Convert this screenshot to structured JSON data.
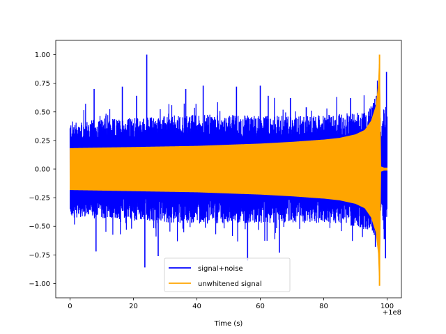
{
  "chart_data": {
    "type": "line",
    "title": "",
    "xlabel": "Time (s)",
    "ylabel": "",
    "x_offset_label": "+1e8",
    "xlim": [
      -4.5,
      104.5
    ],
    "ylim": [
      -1.125,
      1.125
    ],
    "x_ticks": [
      0,
      20,
      40,
      60,
      80,
      100
    ],
    "x_tick_labels": [
      "0",
      "20",
      "40",
      "60",
      "80",
      "100"
    ],
    "y_ticks": [
      1.0,
      0.75,
      0.5,
      0.25,
      0.0,
      -0.25,
      -0.5,
      -0.75,
      -1.0
    ],
    "y_tick_labels": [
      "1.00",
      "0.75",
      "0.50",
      "0.25",
      "0.00",
      "−0.25",
      "−0.50",
      "−0.75",
      "−1.00"
    ],
    "grid": false,
    "legend_position": "lower-center",
    "series": [
      {
        "name": "signal+noise",
        "color": "#0000ff",
        "x_range": [
          0,
          100
        ],
        "approx_envelope": {
          "x": [
            0,
            20,
            40,
            60,
            80,
            90,
            95,
            97.6,
            98,
            99,
            100
          ],
          "upper": [
            0.42,
            0.45,
            0.48,
            0.47,
            0.47,
            0.5,
            0.55,
            0.72,
            0.35,
            0.55,
            0.55
          ],
          "lower": [
            -0.42,
            -0.45,
            -0.48,
            -0.47,
            -0.47,
            -0.5,
            -0.55,
            -0.72,
            -0.35,
            -0.55,
            -0.55
          ]
        },
        "notable_peaks": [
          {
            "x": 24.2,
            "y": 1.0
          },
          {
            "x": 23.6,
            "y": -0.86
          },
          {
            "x": 99.8,
            "y": 0.85
          },
          {
            "x": 99.5,
            "y": -0.78
          },
          {
            "x": 7.6,
            "y": 0.7
          },
          {
            "x": 8.2,
            "y": -0.72
          },
          {
            "x": 16.5,
            "y": 0.72
          },
          {
            "x": 21.0,
            "y": 0.64
          },
          {
            "x": 27.8,
            "y": -0.76
          },
          {
            "x": 36.5,
            "y": 0.7
          },
          {
            "x": 42.0,
            "y": 0.73
          },
          {
            "x": 52.5,
            "y": 0.72
          },
          {
            "x": 56.0,
            "y": -0.8
          },
          {
            "x": 60.0,
            "y": 0.73
          },
          {
            "x": 62.5,
            "y": 0.64
          },
          {
            "x": 66.0,
            "y": -0.73
          },
          {
            "x": 69.5,
            "y": 0.62
          },
          {
            "x": 74.5,
            "y": 0.54
          },
          {
            "x": 88.5,
            "y": 0.62
          },
          {
            "x": 96.3,
            "y": -0.68
          }
        ]
      },
      {
        "name": "unwhitened signal",
        "color": "#ffa500",
        "x_range": [
          0,
          100
        ],
        "approx_envelope": {
          "x": [
            0,
            20,
            40,
            60,
            70,
            80,
            85,
            90,
            93,
            95,
            96.5,
            97.3,
            97.6,
            98.0,
            99,
            100
          ],
          "upper": [
            0.18,
            0.19,
            0.2,
            0.22,
            0.235,
            0.255,
            0.27,
            0.3,
            0.34,
            0.42,
            0.55,
            0.75,
            1.0,
            0.02,
            0.01,
            0.01
          ],
          "lower": [
            -0.18,
            -0.19,
            -0.2,
            -0.22,
            -0.235,
            -0.255,
            -0.27,
            -0.3,
            -0.34,
            -0.42,
            -0.55,
            -0.75,
            -1.02,
            -0.02,
            -0.01,
            -0.01
          ]
        },
        "peak": {
          "x": 97.6,
          "y_max": 1.0,
          "y_min": -1.02
        }
      }
    ]
  }
}
